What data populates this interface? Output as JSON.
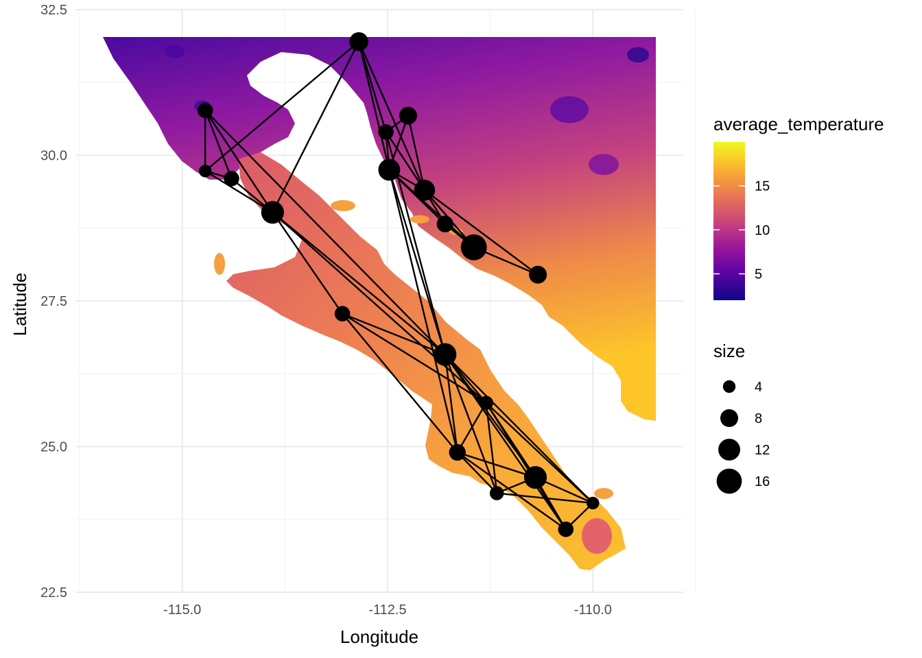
{
  "chart_data": {
    "type": "map",
    "xlabel": "Longitude",
    "ylabel": "Latitude",
    "xlim": [
      -116.3,
      -108.9
    ],
    "ylim": [
      22.5,
      32.5
    ],
    "x_ticks": [
      {
        "value": -115.0,
        "label": "-115.0"
      },
      {
        "value": -112.5,
        "label": "-112.5"
      },
      {
        "value": -110.0,
        "label": "-110.0"
      }
    ],
    "y_ticks": [
      {
        "value": 22.5,
        "label": "22.5"
      },
      {
        "value": 25.0,
        "label": "25.0"
      },
      {
        "value": 27.5,
        "label": "27.5"
      },
      {
        "value": 30.0,
        "label": "30.0"
      },
      {
        "value": 32.5,
        "label": "32.5"
      }
    ],
    "grid": true,
    "fill_legend": {
      "title": "average_temperature",
      "range": [
        2,
        20
      ],
      "ticks": [
        {
          "value": 5,
          "label": "5"
        },
        {
          "value": 10,
          "label": "10"
        },
        {
          "value": 15,
          "label": "15"
        }
      ],
      "colors": [
        "#0d0887",
        "#5b02a3",
        "#9a179b",
        "#cb4678",
        "#eb7852",
        "#fbb32f",
        "#f0f921"
      ]
    },
    "size_legend": {
      "title": "size",
      "entries": [
        {
          "value": 4,
          "label": "4"
        },
        {
          "value": 8,
          "label": "8"
        },
        {
          "value": 12,
          "label": "12"
        },
        {
          "value": 16,
          "label": "16"
        }
      ]
    },
    "nodes": [
      {
        "id": 0,
        "lon": -112.85,
        "lat": 31.95,
        "size": 9
      },
      {
        "id": 1,
        "lon": -114.72,
        "lat": 30.77,
        "size": 6
      },
      {
        "id": 2,
        "lon": -114.72,
        "lat": 29.73,
        "size": 4
      },
      {
        "id": 3,
        "lon": -114.4,
        "lat": 29.6,
        "size": 6
      },
      {
        "id": 4,
        "lon": -113.9,
        "lat": 29.02,
        "size": 13
      },
      {
        "id": 5,
        "lon": -112.52,
        "lat": 30.4,
        "size": 6
      },
      {
        "id": 6,
        "lon": -112.25,
        "lat": 30.68,
        "size": 8
      },
      {
        "id": 7,
        "lon": -112.48,
        "lat": 29.75,
        "size": 12
      },
      {
        "id": 8,
        "lon": -112.05,
        "lat": 29.4,
        "size": 11
      },
      {
        "id": 9,
        "lon": -111.8,
        "lat": 28.82,
        "size": 7
      },
      {
        "id": 10,
        "lon": -111.45,
        "lat": 28.42,
        "size": 17
      },
      {
        "id": 11,
        "lon": -110.67,
        "lat": 27.95,
        "size": 8
      },
      {
        "id": 12,
        "lon": -113.05,
        "lat": 27.28,
        "size": 6
      },
      {
        "id": 13,
        "lon": -111.8,
        "lat": 26.58,
        "size": 13
      },
      {
        "id": 14,
        "lon": -111.3,
        "lat": 25.75,
        "size": 5
      },
      {
        "id": 15,
        "lon": -111.65,
        "lat": 24.9,
        "size": 7
      },
      {
        "id": 16,
        "lon": -110.7,
        "lat": 24.47,
        "size": 13
      },
      {
        "id": 17,
        "lon": -111.17,
        "lat": 24.2,
        "size": 5
      },
      {
        "id": 18,
        "lon": -110.33,
        "lat": 23.58,
        "size": 6
      },
      {
        "id": 19,
        "lon": -110.0,
        "lat": 24.03,
        "size": 4
      }
    ],
    "edges": [
      [
        1,
        2
      ],
      [
        1,
        3
      ],
      [
        1,
        4
      ],
      [
        1,
        13
      ],
      [
        2,
        0
      ],
      [
        2,
        3
      ],
      [
        3,
        4
      ],
      [
        4,
        0
      ],
      [
        4,
        12
      ],
      [
        4,
        13
      ],
      [
        4,
        14
      ],
      [
        2,
        4
      ],
      [
        0,
        5
      ],
      [
        0,
        7
      ],
      [
        0,
        8
      ],
      [
        5,
        6
      ],
      [
        5,
        7
      ],
      [
        5,
        8
      ],
      [
        6,
        7
      ],
      [
        6,
        8
      ],
      [
        7,
        8
      ],
      [
        7,
        9
      ],
      [
        7,
        10
      ],
      [
        7,
        13
      ],
      [
        7,
        15
      ],
      [
        8,
        9
      ],
      [
        8,
        10
      ],
      [
        8,
        11
      ],
      [
        9,
        10
      ],
      [
        10,
        11
      ],
      [
        5,
        13
      ],
      [
        12,
        13
      ],
      [
        12,
        14
      ],
      [
        12,
        15
      ],
      [
        13,
        14
      ],
      [
        13,
        15
      ],
      [
        13,
        16
      ],
      [
        13,
        17
      ],
      [
        13,
        18
      ],
      [
        13,
        19
      ],
      [
        14,
        15
      ],
      [
        14,
        16
      ],
      [
        14,
        17
      ],
      [
        14,
        18
      ],
      [
        14,
        19
      ],
      [
        15,
        16
      ],
      [
        15,
        17
      ],
      [
        15,
        18
      ],
      [
        16,
        17
      ],
      [
        16,
        18
      ],
      [
        16,
        19
      ],
      [
        17,
        19
      ],
      [
        18,
        19
      ]
    ]
  }
}
